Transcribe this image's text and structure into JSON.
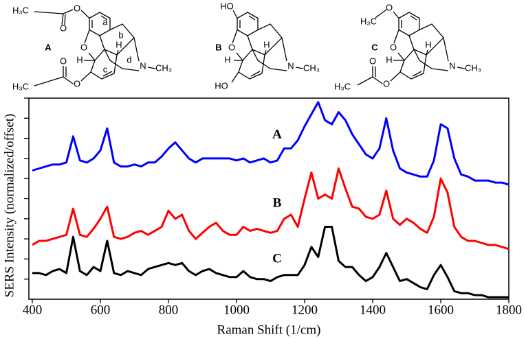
{
  "chart_data": {
    "type": "line",
    "x_label": "Raman Shift (1/cm)",
    "y_label": "SERS Intensity (normalized/offset)",
    "x": [
      400,
      420,
      440,
      460,
      480,
      500,
      520,
      540,
      560,
      580,
      600,
      620,
      640,
      660,
      680,
      700,
      720,
      740,
      760,
      780,
      800,
      820,
      840,
      860,
      880,
      900,
      920,
      940,
      960,
      980,
      1000,
      1020,
      1040,
      1060,
      1080,
      1100,
      1120,
      1140,
      1160,
      1180,
      1200,
      1220,
      1240,
      1260,
      1280,
      1300,
      1320,
      1340,
      1360,
      1380,
      1400,
      1420,
      1440,
      1460,
      1480,
      1500,
      1520,
      1540,
      1560,
      1580,
      1600,
      1620,
      1640,
      1660,
      1680,
      1700,
      1720,
      1740,
      1760,
      1780,
      1800
    ],
    "series": [
      {
        "name": "A",
        "color": "#0000ff",
        "values": [
          6.4,
          6.5,
          6.6,
          6.7,
          6.7,
          6.8,
          8.1,
          6.9,
          6.8,
          7.0,
          7.4,
          8.5,
          6.8,
          6.6,
          6.6,
          6.7,
          6.6,
          6.8,
          6.8,
          7.1,
          7.5,
          7.8,
          7.4,
          7.0,
          6.8,
          7.0,
          7.0,
          7.0,
          7.0,
          7.0,
          6.9,
          7.0,
          6.8,
          6.9,
          7.0,
          6.8,
          6.9,
          7.5,
          7.5,
          7.9,
          8.6,
          9.2,
          9.8,
          8.9,
          8.7,
          9.3,
          8.9,
          8.2,
          7.7,
          7.2,
          7.0,
          7.5,
          9.0,
          7.4,
          6.5,
          6.3,
          6.2,
          6.1,
          6.1,
          6.9,
          8.7,
          8.5,
          7.0,
          6.2,
          6.1,
          5.9,
          5.9,
          5.9,
          5.8,
          5.8,
          5.7
        ]
      },
      {
        "name": "B",
        "color": "#ff0000",
        "values": [
          2.7,
          2.9,
          2.9,
          3.0,
          3.1,
          3.2,
          4.5,
          3.2,
          3.1,
          3.5,
          4.0,
          4.6,
          3.1,
          3.0,
          3.1,
          3.3,
          3.4,
          3.2,
          3.4,
          3.6,
          4.4,
          4.0,
          4.2,
          3.4,
          3.0,
          3.3,
          3.6,
          3.8,
          3.4,
          3.2,
          3.2,
          3.6,
          3.4,
          3.5,
          3.4,
          3.3,
          3.4,
          4.0,
          4.2,
          3.6,
          5.0,
          6.3,
          5.0,
          5.2,
          5.0,
          6.5,
          5.5,
          4.6,
          4.5,
          4.1,
          4.0,
          4.2,
          5.4,
          4.0,
          3.7,
          4.0,
          3.8,
          3.5,
          3.3,
          4.1,
          6.0,
          5.3,
          3.6,
          3.1,
          2.9,
          2.9,
          2.8,
          2.7,
          2.7,
          2.6,
          2.5
        ]
      },
      {
        "name": "C",
        "color": "#000000",
        "values": [
          1.3,
          1.3,
          1.2,
          1.4,
          1.5,
          1.3,
          3.1,
          1.4,
          1.2,
          1.6,
          1.4,
          2.9,
          1.3,
          1.2,
          1.4,
          1.3,
          1.2,
          1.5,
          1.6,
          1.7,
          1.8,
          1.7,
          1.8,
          1.4,
          1.2,
          1.4,
          1.5,
          1.3,
          1.2,
          1.1,
          1.1,
          1.4,
          1.1,
          1.0,
          1.0,
          0.9,
          1.1,
          1.2,
          1.2,
          1.2,
          1.7,
          2.6,
          2.1,
          3.6,
          3.6,
          1.9,
          1.6,
          1.6,
          1.2,
          0.9,
          1.1,
          1.6,
          2.3,
          1.6,
          0.9,
          1.0,
          0.8,
          0.6,
          0.5,
          1.2,
          1.7,
          1.1,
          0.4,
          0.3,
          0.3,
          0.2,
          0.2,
          0.1,
          0.1,
          0.1,
          0.1
        ]
      }
    ],
    "xlim": [
      390,
      1800
    ],
    "xticks": [
      400,
      600,
      800,
      1000,
      1200,
      1400,
      1600,
      1800
    ],
    "ylim": [
      0,
      10
    ],
    "yticks": [
      1,
      2,
      3,
      4,
      5,
      6,
      7,
      8,
      9,
      10
    ],
    "grid": false
  },
  "structures": [
    {
      "label": "A",
      "texts": [
        "H₃C",
        "O",
        "O",
        "a",
        "b",
        "H",
        "O",
        "H",
        "c",
        "d",
        "N",
        "CH₃",
        "O",
        "H₃C",
        "O"
      ]
    },
    {
      "label": "B",
      "texts": [
        "HO",
        "O",
        "H",
        "H",
        "N",
        "CH₃",
        "HO"
      ]
    },
    {
      "label": "C",
      "texts": [
        "O",
        "H₃C",
        "O",
        "H",
        "H",
        "N",
        "CH₃",
        "O",
        "H₃C",
        "O"
      ]
    }
  ]
}
